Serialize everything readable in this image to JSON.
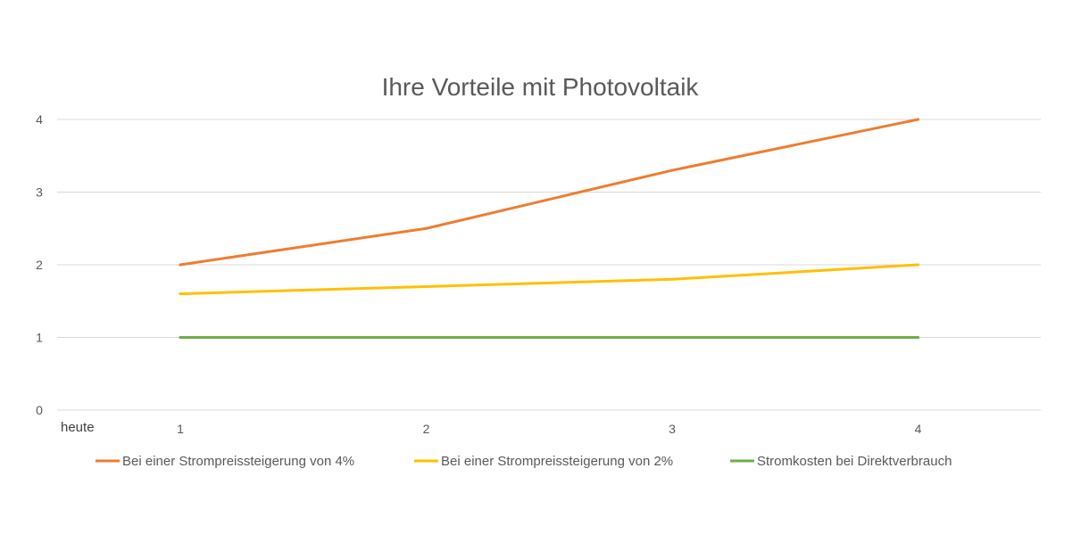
{
  "chart_data": {
    "type": "line",
    "title": "Ihre Vorteile mit Photovoltaik",
    "side_label": "heute",
    "categories": [
      "1",
      "2",
      "3",
      "4"
    ],
    "x": [
      1,
      2,
      3,
      4
    ],
    "ylim": [
      0,
      4
    ],
    "yticks": [
      "0",
      "1",
      "2",
      "3",
      "4"
    ],
    "grid": true,
    "legend_position": "bottom",
    "series": [
      {
        "name": "Bei einer Strompreissteigerung von 4%",
        "color": "#ED7D31",
        "values": [
          2.0,
          2.5,
          3.3,
          4.0
        ]
      },
      {
        "name": "Bei einer Strompreissteigerung von 2%",
        "color": "#FFC000",
        "values": [
          1.6,
          1.7,
          1.8,
          2.0
        ]
      },
      {
        "name": "Stromkosten bei Direktverbrauch",
        "color": "#70AD47",
        "values": [
          1.0,
          1.0,
          1.0,
          1.0
        ]
      }
    ]
  }
}
